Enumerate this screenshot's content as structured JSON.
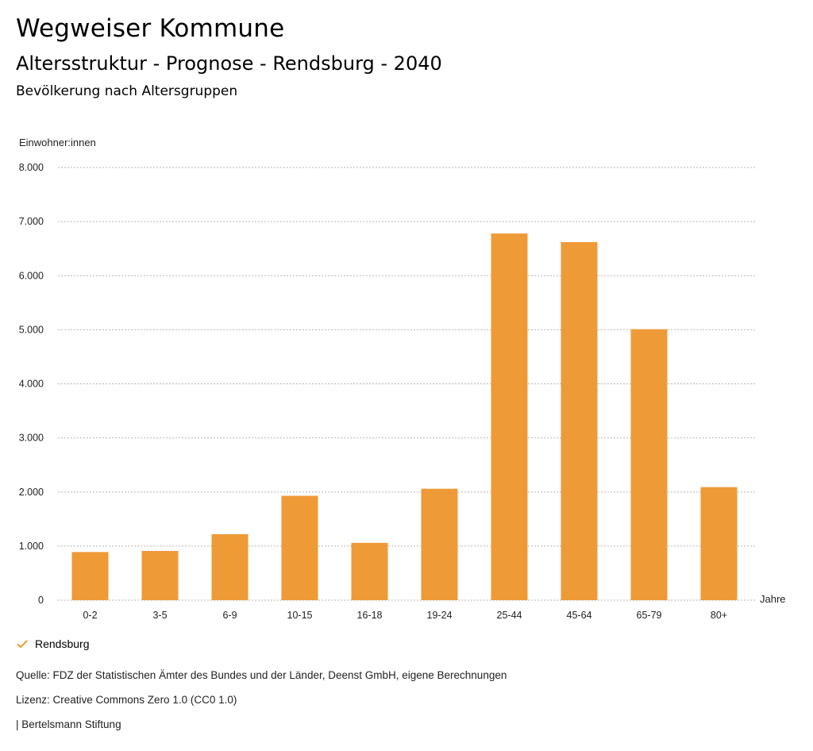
{
  "header": {
    "title": "Wegweiser Kommune",
    "subtitle": "Altersstruktur - Prognose - Rendsburg - 2040",
    "chart_heading": "Bevölkerung nach Altersgruppen"
  },
  "chart_data": {
    "type": "bar",
    "ylabel": "Einwohner:innen",
    "xlabel": "Jahre",
    "categories": [
      "0-2",
      "3-5",
      "6-9",
      "10-15",
      "16-18",
      "19-24",
      "25-44",
      "45-64",
      "65-79",
      "80+"
    ],
    "series": [
      {
        "name": "Rendsburg",
        "color": "#ee9a37",
        "values": [
          890,
          910,
          1220,
          1930,
          1060,
          2060,
          6780,
          6620,
          5010,
          2090
        ]
      }
    ],
    "ylim": [
      0,
      8000
    ],
    "yticks": [
      0,
      1000,
      2000,
      3000,
      4000,
      5000,
      6000,
      7000,
      8000
    ],
    "ytick_labels": [
      "0",
      "1.000",
      "2.000",
      "3.000",
      "4.000",
      "5.000",
      "6.000",
      "7.000",
      "8.000"
    ],
    "grid": true,
    "legend_position": "bottom-left"
  },
  "legend": {
    "label": "Rendsburg",
    "icon": "checkmark-icon",
    "color": "#ee9a37"
  },
  "footer": {
    "source": "Quelle: FDZ der Statistischen Ämter des Bundes und der Länder, Deenst GmbH, eigene Berechnungen",
    "license": "Lizenz: Creative Commons Zero 1.0 (CC0 1.0)",
    "publisher": "| Bertelsmann Stiftung"
  }
}
